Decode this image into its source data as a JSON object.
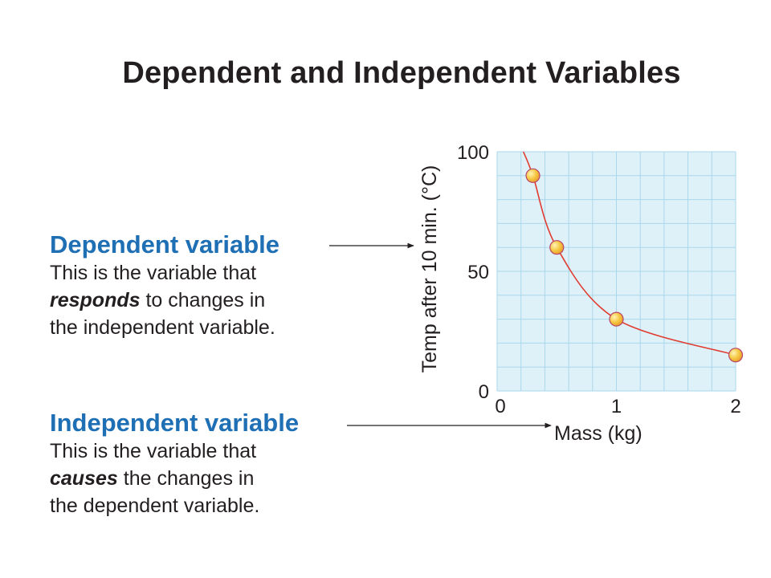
{
  "title": "Dependent and Independent Variables",
  "dependent": {
    "heading": "Dependent variable",
    "line1": "This is the variable that",
    "line2_em": "responds",
    "line2_rest": " to changes in",
    "line3": "the independent variable."
  },
  "independent": {
    "heading": "Independent variable",
    "line1": "This is the variable that",
    "line2_em": "causes",
    "line2_rest": " the changes in",
    "line3": "the dependent variable."
  },
  "chart_data": {
    "type": "scatter",
    "xlabel": "Mass (kg)",
    "ylabel": "Temp after 10 min. (°C)",
    "xlim": [
      0,
      2
    ],
    "ylim": [
      0,
      100
    ],
    "x_ticks": [
      "0",
      "1",
      "2"
    ],
    "y_ticks": [
      "0",
      "50",
      "100"
    ],
    "grid": true,
    "curve": "fitted decreasing curve through points",
    "points": [
      {
        "x": 0.3,
        "y": 90
      },
      {
        "x": 0.5,
        "y": 60
      },
      {
        "x": 1.0,
        "y": 30
      },
      {
        "x": 2.0,
        "y": 15
      }
    ],
    "colors": {
      "background": "#dff1f8",
      "grid": "#a9d7ec",
      "curve": "#e03c31",
      "point_fill": "#f5c842",
      "point_stroke": "#b8456a",
      "heading": "#1f6fb5"
    }
  }
}
